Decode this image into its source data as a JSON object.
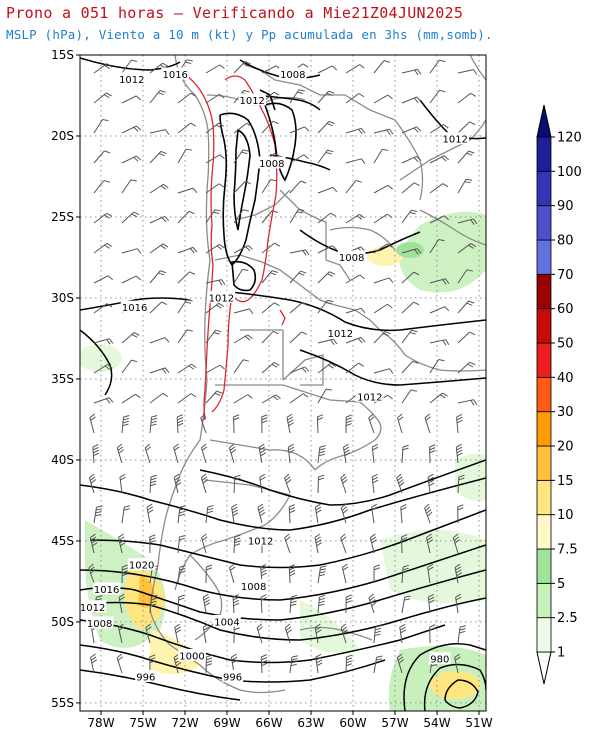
{
  "title": {
    "line1": "Prono a 051 horas – Verificando a Mie21Z04JUN2025",
    "line2": "MSLP (hPa), Viento a 10 m (kt) y Pp acumulada en 3hs (mm,somb)."
  },
  "axes": {
    "lat_labels": [
      "15S",
      "20S",
      "25S",
      "30S",
      "35S",
      "40S",
      "45S",
      "50S",
      "55S"
    ],
    "lon_labels": [
      "78W",
      "75W",
      "72W",
      "69W",
      "66W",
      "63W",
      "60W",
      "57W",
      "54W",
      "51W"
    ]
  },
  "isobar_labels": [
    {
      "text": "1012",
      "lon": -75.8,
      "lat": -16.5
    },
    {
      "text": "1016",
      "lon": -72.7,
      "lat": -16.2
    },
    {
      "text": "1008",
      "lon": -64.3,
      "lat": -16.2
    },
    {
      "text": "1012",
      "lon": -67.2,
      "lat": -17.8
    },
    {
      "text": "1008",
      "lon": -65.8,
      "lat": -21.7
    },
    {
      "text": "1012",
      "lon": -52.7,
      "lat": -20.2
    },
    {
      "text": "1008",
      "lon": -60.1,
      "lat": -27.5
    },
    {
      "text": "1016",
      "lon": -75.6,
      "lat": -30.6
    },
    {
      "text": "1012",
      "lon": -69.4,
      "lat": -30.0
    },
    {
      "text": "1012",
      "lon": -60.9,
      "lat": -32.2
    },
    {
      "text": "1012",
      "lon": -58.8,
      "lat": -36.1
    },
    {
      "text": "1012",
      "lon": -66.6,
      "lat": -45.0
    },
    {
      "text": "1020",
      "lon": -75.1,
      "lat": -46.5
    },
    {
      "text": "1016",
      "lon": -77.6,
      "lat": -48.0
    },
    {
      "text": "1012",
      "lon": -78.6,
      "lat": -49.1
    },
    {
      "text": "1008",
      "lon": -78.1,
      "lat": -50.1
    },
    {
      "text": "1008",
      "lon": -67.1,
      "lat": -47.8
    },
    {
      "text": "1004",
      "lon": -69.0,
      "lat": -50.0
    },
    {
      "text": "1000",
      "lon": -71.5,
      "lat": -52.1
    },
    {
      "text": "996",
      "lon": -74.8,
      "lat": -53.4
    },
    {
      "text": "996",
      "lon": -68.6,
      "lat": -53.4
    },
    {
      "text": "980",
      "lon": -53.8,
      "lat": -52.3
    }
  ],
  "colorbar": {
    "levels": [
      "1",
      "2.5",
      "5",
      "7.5",
      "10",
      "15",
      "20",
      "30",
      "40",
      "50",
      "60",
      "70",
      "80",
      "90",
      "100",
      "120"
    ],
    "colors": [
      "#eefbe6",
      "#c8f0bc",
      "#9fe39a",
      "#fff9c8",
      "#ffe680",
      "#ffc23a",
      "#ff9a00",
      "#ff5a14",
      "#ec1e1e",
      "#c80a0a",
      "#9a0000",
      "#6470e0",
      "#4b50cc",
      "#3236b4",
      "#1e1e9a",
      "#0a0a78"
    ]
  },
  "colors": {
    "title": "#c0101a",
    "subtitle": "#1f7fd0",
    "isobar": "#000000",
    "terrain_contour": "#e0262a",
    "political_border": "#8a8a8a",
    "wind_barb": "#555555"
  }
}
